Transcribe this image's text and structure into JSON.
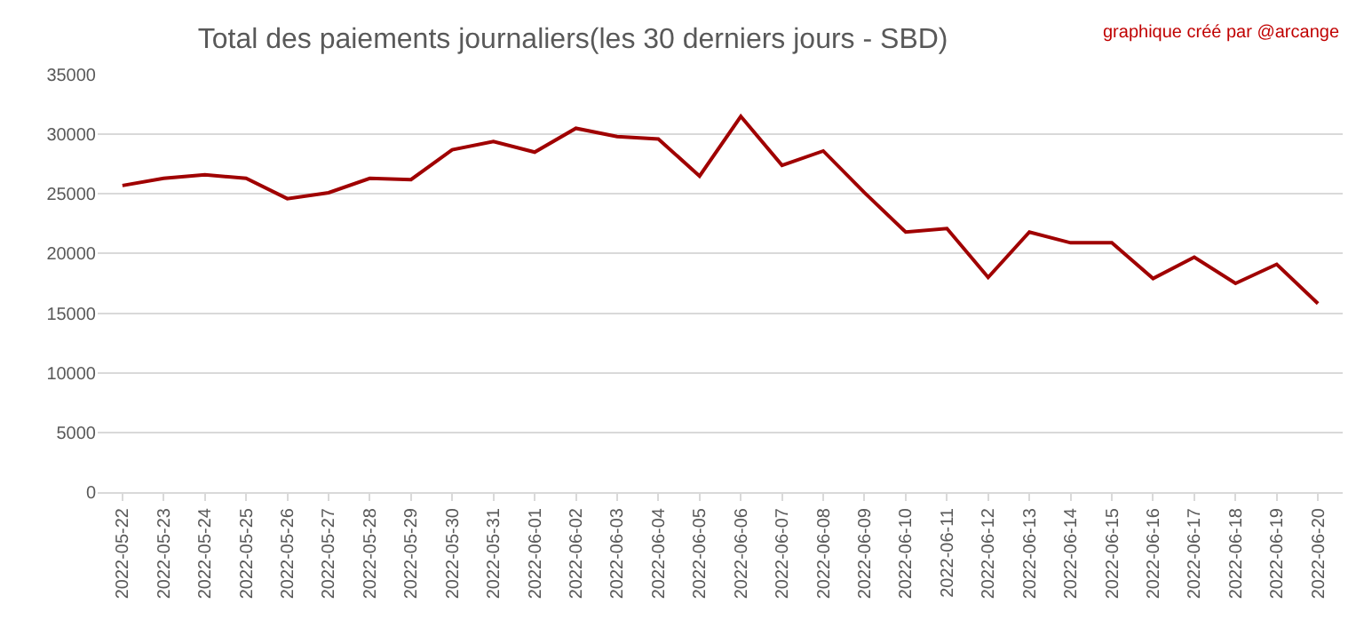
{
  "chart_data": {
    "type": "line",
    "title": "Total des paiements journaliers(les 30 derniers jours - SBD)",
    "annotations": [
      "graphique créé par @arcange"
    ],
    "categories": [
      "2022-05-22",
      "2022-05-23",
      "2022-05-24",
      "2022-05-25",
      "2022-05-26",
      "2022-05-27",
      "2022-05-28",
      "2022-05-29",
      "2022-05-30",
      "2022-05-31",
      "2022-06-01",
      "2022-06-02",
      "2022-06-03",
      "2022-06-04",
      "2022-06-05",
      "2022-06-06",
      "2022-06-07",
      "2022-06-08",
      "2022-06-09",
      "2022-06-10",
      "2022-06-11",
      "2022-06-12",
      "2022-06-13",
      "2022-06-14",
      "2022-06-15",
      "2022-06-16",
      "2022-06-17",
      "2022-06-18",
      "2022-06-19",
      "2022-06-20"
    ],
    "series": [
      {
        "color": "#a00000",
        "values": [
          25700,
          26300,
          26600,
          26300,
          24600,
          25100,
          26300,
          26200,
          28700,
          29400,
          28500,
          30500,
          29800,
          29600,
          26500,
          31500,
          27400,
          28600,
          25100,
          21800,
          22100,
          18000,
          21800,
          20900,
          20900,
          17900,
          19700,
          17500,
          19100,
          15800
        ]
      }
    ],
    "ylim": [
      0,
      35000
    ],
    "yticks": [
      0,
      5000,
      10000,
      15000,
      20000,
      25000,
      30000,
      35000
    ],
    "grid": "y",
    "marker": "none",
    "line_style": "solid"
  }
}
